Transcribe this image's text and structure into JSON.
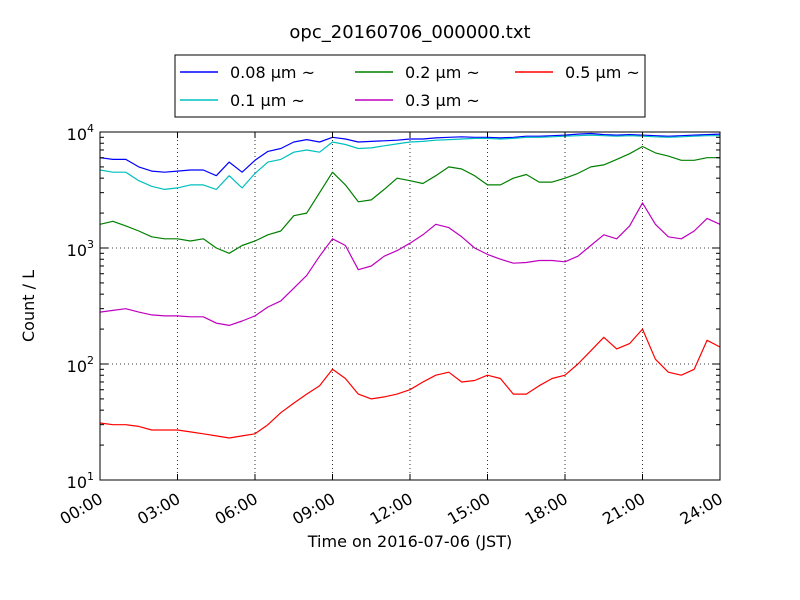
{
  "chart_data": {
    "type": "line",
    "title": "opc_20160706_000000.txt",
    "xlabel": "Time on 2016-07-06 (JST)",
    "ylabel": "Count / L",
    "xlim": [
      0,
      24
    ],
    "ylim": [
      10,
      10000
    ],
    "yscale": "log",
    "grid": true,
    "legend_position": "top-center, above plot",
    "x_ticks": [
      "00:00",
      "03:00",
      "06:00",
      "09:00",
      "12:00",
      "15:00",
      "18:00",
      "21:00",
      "24:00"
    ],
    "y_ticks": [
      {
        "value": 10,
        "base": "10",
        "exp": "1"
      },
      {
        "value": 100,
        "base": "10",
        "exp": "2"
      },
      {
        "value": 1000,
        "base": "10",
        "exp": "3"
      },
      {
        "value": 10000,
        "base": "10",
        "exp": "4"
      }
    ],
    "x_hours": [
      0,
      0.5,
      1,
      1.5,
      2,
      2.5,
      3,
      3.5,
      4,
      4.5,
      5,
      5.5,
      6,
      6.5,
      7,
      7.5,
      8,
      8.5,
      9,
      9.5,
      10,
      10.5,
      11,
      11.5,
      12,
      12.5,
      13,
      13.5,
      14,
      14.5,
      15,
      15.5,
      16,
      16.5,
      17,
      17.5,
      18,
      18.5,
      19,
      19.5,
      20,
      20.5,
      21,
      21.5,
      22,
      22.5,
      23,
      23.5,
      24
    ],
    "series": [
      {
        "name": "0.08 μm ~",
        "color": "#0000ff",
        "values": [
          6000,
          5800,
          5800,
          5000,
          4600,
          4500,
          4600,
          4700,
          4700,
          4200,
          5500,
          4500,
          5700,
          6800,
          7200,
          8200,
          8600,
          8200,
          9000,
          8700,
          8200,
          8300,
          8400,
          8500,
          8700,
          8700,
          8900,
          9000,
          9100,
          9000,
          9000,
          8900,
          9000,
          9200,
          9200,
          9300,
          9400,
          9600,
          9700,
          9500,
          9400,
          9500,
          9400,
          9300,
          9200,
          9300,
          9400,
          9500,
          9600
        ]
      },
      {
        "name": "0.1 μm ~",
        "color": "#00bfbf",
        "values": [
          4700,
          4500,
          4500,
          3800,
          3400,
          3200,
          3300,
          3500,
          3500,
          3200,
          4200,
          3300,
          4400,
          5500,
          5800,
          6700,
          7000,
          6700,
          8200,
          7800,
          7200,
          7300,
          7600,
          7900,
          8200,
          8300,
          8500,
          8600,
          8700,
          8800,
          8800,
          8700,
          8800,
          9000,
          9000,
          9100,
          9200,
          9300,
          9400,
          9300,
          9200,
          9300,
          9200,
          9100,
          9000,
          9100,
          9200,
          9300,
          9300
        ]
      },
      {
        "name": "0.2 μm ~",
        "color": "#008000",
        "values": [
          1600,
          1700,
          1550,
          1400,
          1250,
          1200,
          1200,
          1150,
          1200,
          1000,
          900,
          1050,
          1150,
          1300,
          1400,
          1900,
          2000,
          3000,
          4500,
          3500,
          2500,
          2600,
          3200,
          4000,
          3800,
          3600,
          4200,
          5000,
          4800,
          4200,
          3500,
          3500,
          4000,
          4300,
          3700,
          3700,
          4000,
          4400,
          5000,
          5200,
          5800,
          6500,
          7500,
          6600,
          6200,
          5700,
          5700,
          6000,
          6000
        ]
      },
      {
        "name": "0.3 μm ~",
        "color": "#bf00bf",
        "values": [
          280,
          290,
          300,
          280,
          265,
          260,
          260,
          255,
          255,
          225,
          215,
          235,
          260,
          310,
          350,
          450,
          580,
          850,
          1200,
          1050,
          650,
          700,
          850,
          950,
          1100,
          1300,
          1600,
          1500,
          1250,
          1000,
          880,
          800,
          740,
          750,
          780,
          780,
          760,
          850,
          1050,
          1300,
          1200,
          1550,
          2450,
          1600,
          1250,
          1200,
          1400,
          1800,
          1600
        ]
      },
      {
        "name": "0.5 μm ~",
        "color": "#ff0000",
        "values": [
          31,
          30,
          30,
          29,
          27,
          27,
          27,
          26,
          25,
          24,
          23,
          24,
          25,
          30,
          38,
          46,
          55,
          65,
          90,
          75,
          55,
          50,
          52,
          55,
          60,
          70,
          80,
          85,
          70,
          72,
          80,
          75,
          55,
          55,
          65,
          75,
          80,
          100,
          130,
          170,
          135,
          150,
          200,
          110,
          85,
          80,
          90,
          160,
          140
        ]
      }
    ]
  }
}
